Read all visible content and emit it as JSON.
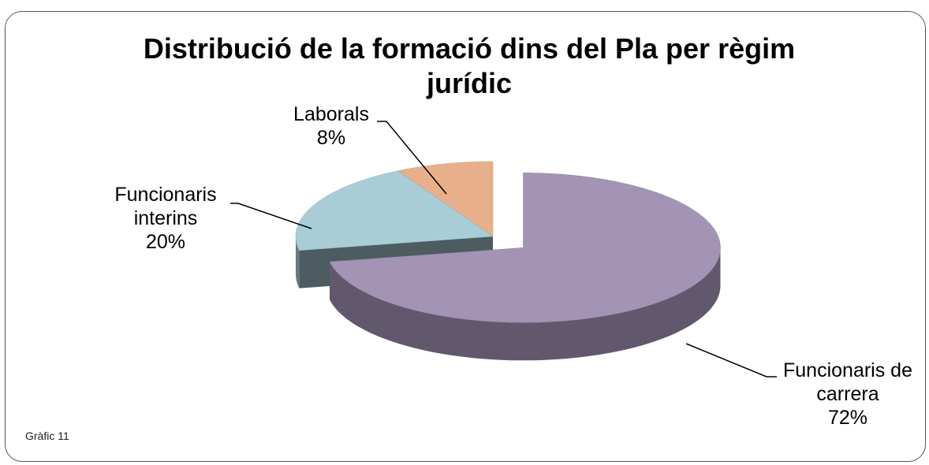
{
  "chart_data": {
    "type": "pie",
    "title": "Distribució de la formació dins del Pla per règim jurídic",
    "categories": [
      "Funcionaris de carrera",
      "Funcionaris interins",
      "Laborals"
    ],
    "values": [
      72,
      20,
      8
    ],
    "value_labels": [
      "72%",
      "20%",
      "8%"
    ],
    "colors": [
      "#a393b5",
      "#a8cdd7",
      "#e8b08a"
    ],
    "annotation": "Gràfic 11"
  }
}
